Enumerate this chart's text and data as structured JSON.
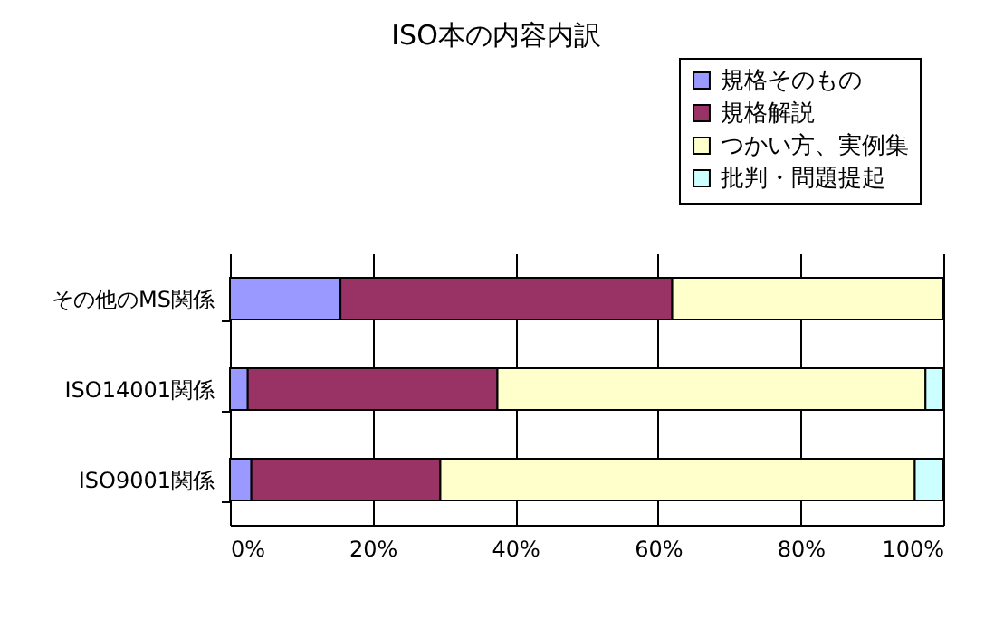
{
  "chart_data": {
    "type": "bar",
    "title": "ISO本の内容内訳",
    "orientation": "horizontal",
    "stacked": true,
    "categories": [
      "その他のMS関係",
      "ISO14001関係",
      "ISO9001関係"
    ],
    "series": [
      {
        "name": "規格そのもの",
        "color": "#9999ff",
        "values": [
          15.5,
          2.5,
          3
        ]
      },
      {
        "name": "規格解説",
        "color": "#993366",
        "values": [
          46.5,
          35,
          26.5
        ]
      },
      {
        "name": "つかい方、実例集",
        "color": "#ffffcc",
        "values": [
          38,
          60,
          66.5
        ]
      },
      {
        "name": "批判・問題提起",
        "color": "#ccffff",
        "values": [
          0,
          2.5,
          4
        ]
      }
    ],
    "xlim": [
      0,
      100
    ],
    "xticks": [
      {
        "value": 0,
        "label": "0%"
      },
      {
        "value": 20,
        "label": "20%"
      },
      {
        "value": 40,
        "label": "40%"
      },
      {
        "value": 60,
        "label": "60%"
      },
      {
        "value": 80,
        "label": "80%"
      },
      {
        "value": 100,
        "label": "100%"
      }
    ],
    "grid": "x",
    "legend": "top right"
  }
}
